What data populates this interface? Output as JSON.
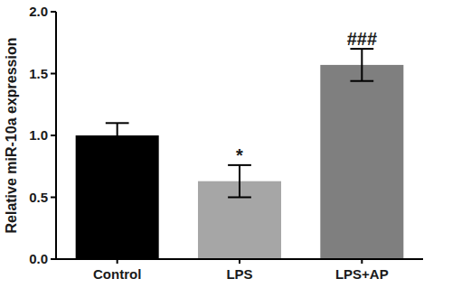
{
  "chart_data": {
    "type": "bar",
    "y_label": "Relative miR-10a expression",
    "categories": [
      "Control",
      "LPS",
      "LPS+AP"
    ],
    "values": [
      1.0,
      0.63,
      1.57
    ],
    "errors": [
      0.1,
      0.13,
      0.13
    ],
    "colors": [
      "#000000",
      "#a6a6a6",
      "#7f7f7f"
    ],
    "annotations": [
      null,
      "*",
      "###"
    ],
    "ylim": [
      0,
      2
    ],
    "yticks": [
      {
        "value": 0,
        "label": "0.0"
      },
      0.5,
      {
        "value": 1,
        "label": "1.0"
      },
      1.5,
      {
        "value": 2,
        "label": "2.0"
      }
    ],
    "grid": false
  }
}
